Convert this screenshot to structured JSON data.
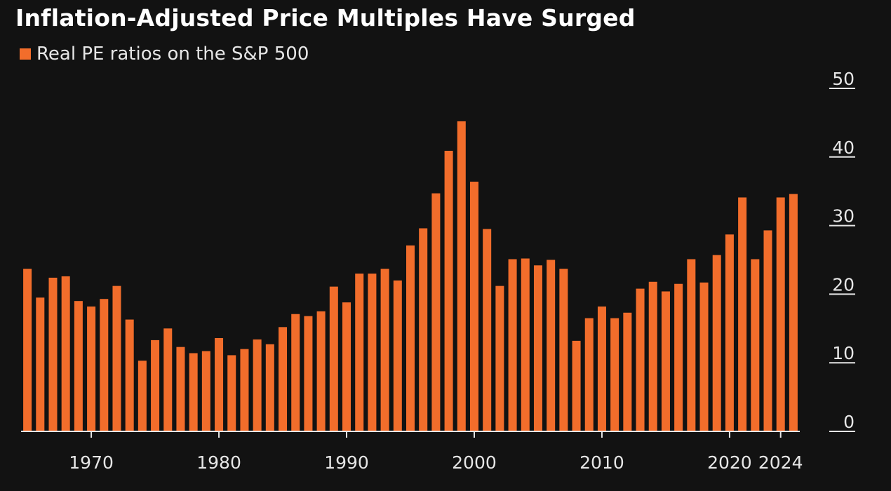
{
  "chart_data": {
    "type": "bar",
    "title": "Inflation-Adjusted Price Multiples Have Surged",
    "xlabel": "",
    "ylabel": "",
    "ylim": [
      0,
      50
    ],
    "grid": false,
    "legend_position": "top-left",
    "series": [
      {
        "name": "Real PE ratios on the S&P 500",
        "color": "#f26d2b",
        "values": [
          23.6,
          19.4,
          22.3,
          22.5,
          18.9,
          18.1,
          19.2,
          21.1,
          16.2,
          10.2,
          13.2,
          14.9,
          12.2,
          11.3,
          11.6,
          13.5,
          11.0,
          11.9,
          13.3,
          12.6,
          15.1,
          17.0,
          16.7,
          17.4,
          21.0,
          18.7,
          22.9,
          22.9,
          23.6,
          21.9,
          27.0,
          29.5,
          34.6,
          40.8,
          45.1,
          36.3,
          29.4,
          21.1,
          25.0,
          25.1,
          24.1,
          24.9,
          23.6,
          13.1,
          16.4,
          18.1,
          16.4,
          17.2,
          20.7,
          21.7,
          20.3,
          21.4,
          25.0,
          21.6,
          25.6,
          28.6,
          34.0,
          25.0,
          29.2,
          34.0,
          34.5
        ]
      }
    ],
    "x": [
      1965,
      1966,
      1967,
      1968,
      1969,
      1970,
      1971,
      1972,
      1973,
      1974,
      1975,
      1976,
      1977,
      1978,
      1979,
      1980,
      1981,
      1982,
      1983,
      1984,
      1985,
      1986,
      1987,
      1988,
      1989,
      1990,
      1991,
      1992,
      1993,
      1994,
      1995,
      1996,
      1997,
      1998,
      1999,
      2000,
      2001,
      2002,
      2003,
      2004,
      2005,
      2006,
      2007,
      2008,
      2009,
      2010,
      2011,
      2012,
      2013,
      2014,
      2015,
      2016,
      2017,
      2018,
      2019,
      2020,
      2021,
      2022,
      2023,
      2024,
      2025
    ],
    "x_ticks": [
      {
        "value": 1970,
        "label": "1970"
      },
      {
        "value": 1980,
        "label": "1980"
      },
      {
        "value": 1990,
        "label": "1990"
      },
      {
        "value": 2000,
        "label": "2000"
      },
      {
        "value": 2010,
        "label": "2010"
      },
      {
        "value": 2020,
        "label": "2020"
      },
      {
        "value": 2024,
        "label": "2024"
      }
    ],
    "y_ticks": [
      {
        "value": 0,
        "label": "0"
      },
      {
        "value": 10,
        "label": "10"
      },
      {
        "value": 20,
        "label": "20"
      },
      {
        "value": 30,
        "label": "30"
      },
      {
        "value": 40,
        "label": "40"
      },
      {
        "value": 50,
        "label": "50"
      }
    ],
    "colors": {
      "background": "#121212",
      "bar": "#f26d2b",
      "text": "#e6e6e6",
      "axis": "#e6e6e6"
    }
  }
}
